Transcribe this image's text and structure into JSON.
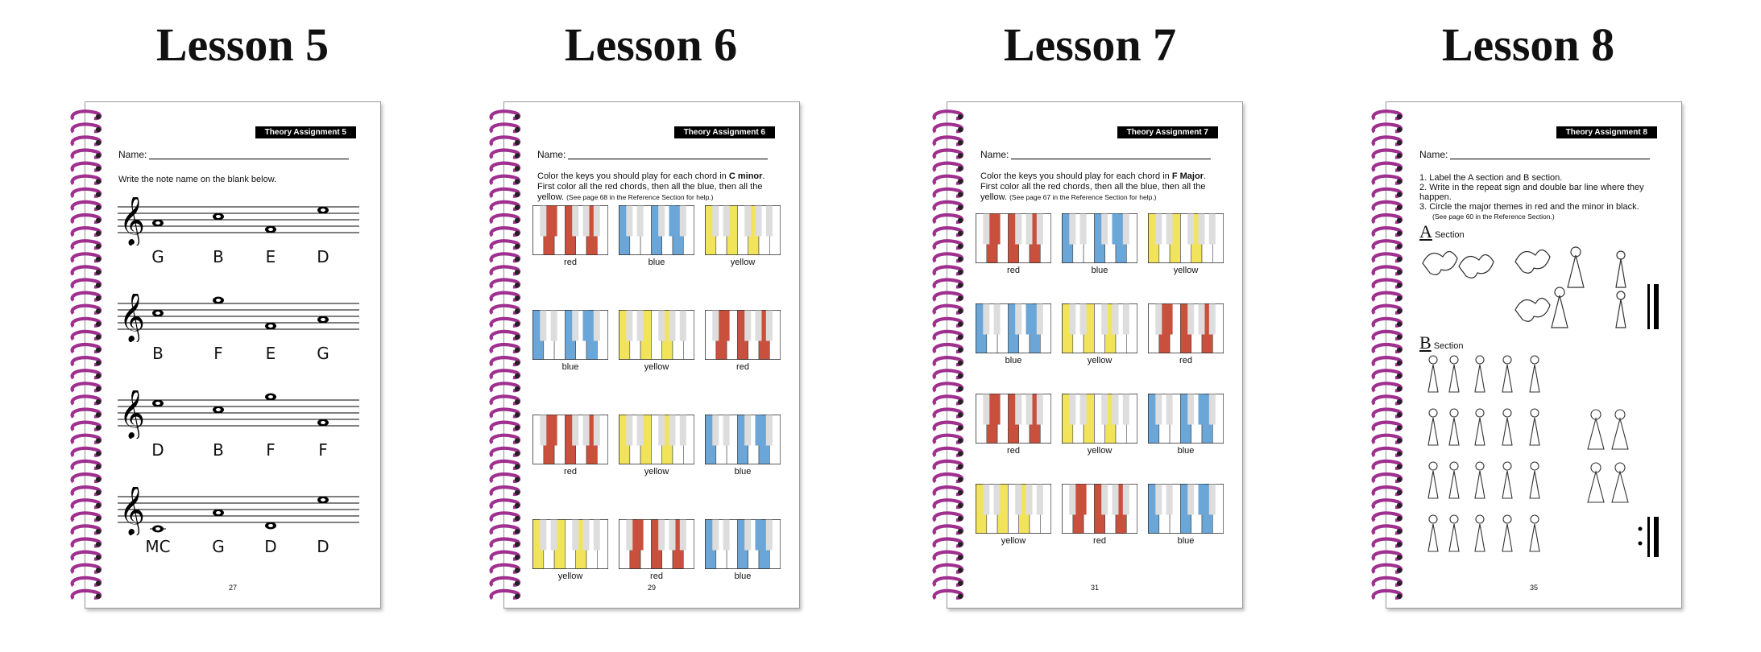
{
  "lessons": [
    {
      "title": "Lesson 5",
      "badge": "Theory Assignment 5",
      "name_label": "Name:",
      "instruction": "Write the note name on the blank below.",
      "staves": [
        {
          "notes": [
            "G",
            "B",
            "E",
            "D"
          ]
        },
        {
          "notes": [
            "B",
            "F",
            "E",
            "G"
          ]
        },
        {
          "notes": [
            "D",
            "B",
            "F",
            "F"
          ]
        },
        {
          "notes": [
            "MC",
            "G",
            "D",
            "D"
          ]
        }
      ],
      "page_number": "27"
    },
    {
      "title": "Lesson 6",
      "badge": "Theory Assignment 6",
      "name_label": "Name:",
      "instruction_a": "Color the keys you should play for each chord in ",
      "instruction_key": "C minor",
      "instruction_b": ". First color all the red chords, then all the blue, then all the yellow.",
      "instruction_small": "(See page 68 in the Reference Section for help.)",
      "chords": [
        "red",
        "blue",
        "yellow",
        "blue",
        "yellow",
        "red",
        "red",
        "yellow",
        "blue",
        "yellow",
        "red",
        "blue"
      ],
      "page_number": "29"
    },
    {
      "title": "Lesson 7",
      "badge": "Theory Assignment 7",
      "name_label": "Name:",
      "instruction_a": "Color the keys you should play for each chord in ",
      "instruction_key": "F Major",
      "instruction_b": ". First color all the red chords, then all the blue, then all the yellow.",
      "instruction_small": "(See page 67 in the Reference Section for help.)",
      "chords": [
        "red",
        "blue",
        "yellow",
        "blue",
        "yellow",
        "red",
        "red",
        "yellow",
        "blue",
        "yellow",
        "red",
        "blue"
      ],
      "page_number": "31"
    },
    {
      "title": "Lesson 8",
      "badge": "Theory Assignment 8",
      "name_label": "Name:",
      "list": [
        "1.  Label the A section and B section.",
        "2.  Write in the repeat sign and double bar line where they happen.",
        "3.  Circle the major themes in red and the minor in black."
      ],
      "list_small": "(See page 60 in the Reference Section.)",
      "section_a": {
        "letter": "A",
        "label": "Section"
      },
      "section_b": {
        "letter": "B",
        "label": "Section"
      },
      "page_number": "35"
    }
  ],
  "colors": {
    "red": "#c9503c",
    "blue": "#6aa6d8",
    "yellow": "#f2e45a",
    "coil": "#a0308f"
  }
}
